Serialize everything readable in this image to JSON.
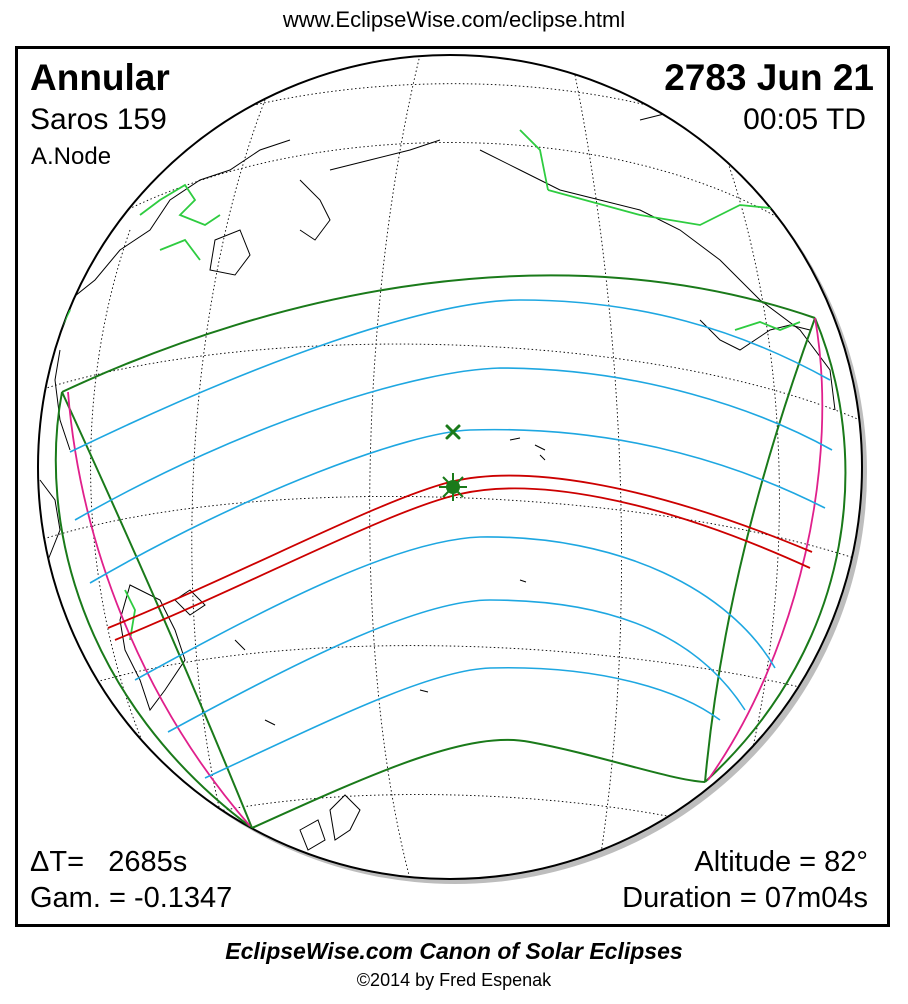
{
  "header": {
    "site_url": "www.EclipseWise.com/eclipse.html"
  },
  "eclipse": {
    "type": "Annular",
    "saros": "Saros 159",
    "node": "A.Node",
    "date": "2783 Jun 21",
    "time": "00:05 TD",
    "delta_t": "ΔT=   2685s",
    "gamma": "Gam. = -0.1347",
    "altitude": "Altitude = 82°",
    "duration": "Duration = 07m04s"
  },
  "footer": {
    "title": "EclipseWise.com Canon of Solar Eclipses",
    "copyright": "©2014 by Fred Espenak"
  },
  "map": {
    "colors": {
      "globe_outline": "#000000",
      "graticule": "#000000",
      "coastlines": "#000000",
      "borders": "#2ecc40",
      "penumbra_limits": "#1a7a1a",
      "partial_lines": "#1ea7e1",
      "central_path": "#cc0000",
      "rise_set_curves": "#e0208c",
      "greatest_eclipse": "#1a7a1a"
    },
    "markers": [
      "greatest-eclipse-marker",
      "sub-solar-marker"
    ]
  }
}
